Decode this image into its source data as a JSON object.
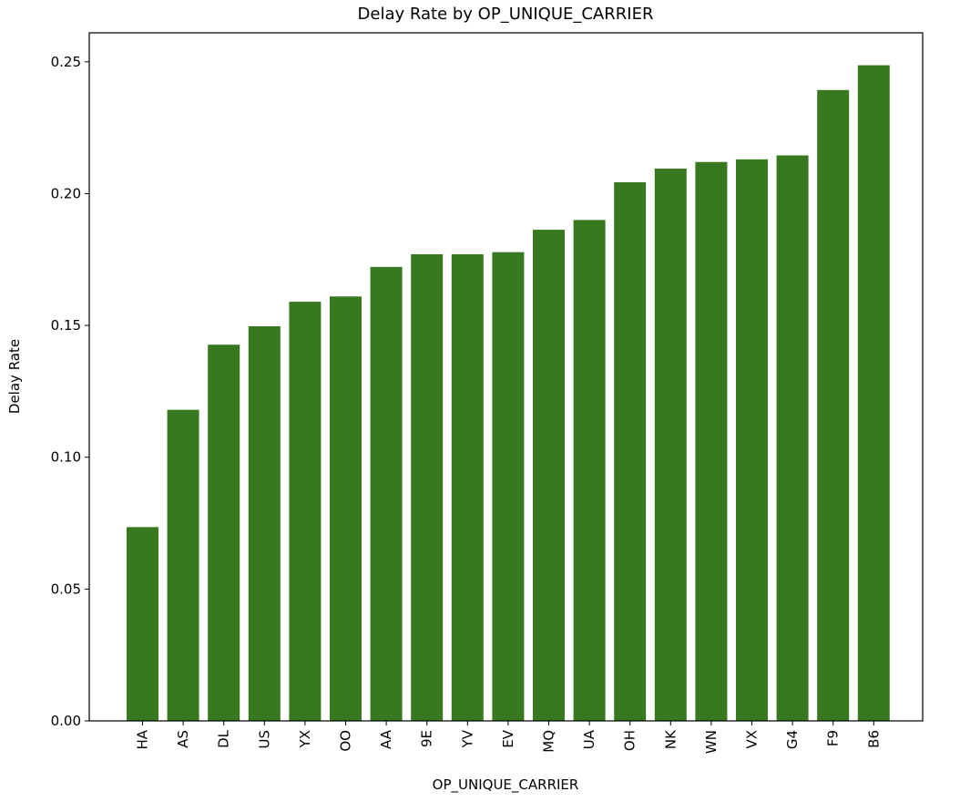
{
  "chart_data": {
    "type": "bar",
    "title": "Delay Rate by OP_UNIQUE_CARRIER",
    "xlabel": "OP_UNIQUE_CARRIER",
    "ylabel": "Delay Rate",
    "categories": [
      "HA",
      "AS",
      "DL",
      "US",
      "YX",
      "OO",
      "AA",
      "9E",
      "YV",
      "EV",
      "MQ",
      "UA",
      "OH",
      "NK",
      "WN",
      "VX",
      "G4",
      "F9",
      "B6"
    ],
    "values": [
      0.0735,
      0.118,
      0.1427,
      0.1497,
      0.159,
      0.161,
      0.1722,
      0.177,
      0.177,
      0.1778,
      0.1863,
      0.19,
      0.2043,
      0.2095,
      0.212,
      0.213,
      0.2145,
      0.2393,
      0.2487
    ],
    "ylim": [
      0,
      0.261
    ],
    "yticks": [
      0.0,
      0.05,
      0.1,
      0.15,
      0.2,
      0.25
    ],
    "ytick_labels": [
      "0.00",
      "0.05",
      "0.10",
      "0.15",
      "0.20",
      "0.25"
    ],
    "bar_color": "#38781f",
    "grid": false,
    "legend": "none"
  }
}
